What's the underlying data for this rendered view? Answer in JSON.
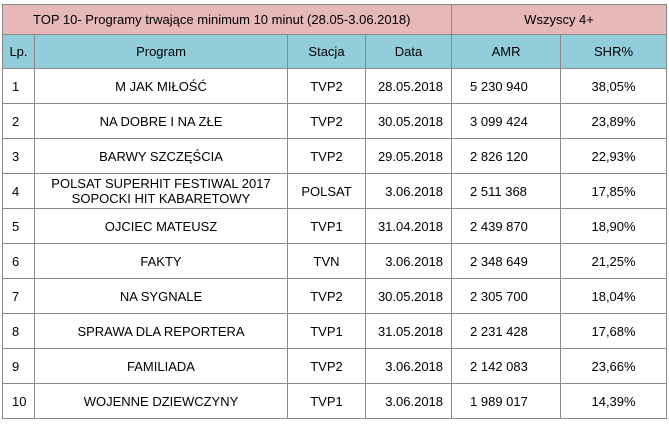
{
  "table": {
    "title": "TOP 10- Programy trwające minimum 10 minut (28.05-3.06.2018)",
    "group_label": "Wszyscy 4+",
    "headers": {
      "lp": "Lp.",
      "program": "Program",
      "station": "Stacja",
      "date": "Data",
      "amr": "AMR",
      "shr": "SHR%"
    },
    "rows": [
      {
        "lp": "1",
        "program": "M JAK MIŁOŚĆ",
        "station": "TVP2",
        "date": "28.05.2018",
        "amr": "5 230 940",
        "shr": "38,05%"
      },
      {
        "lp": "2",
        "program": "NA DOBRE I NA ZŁE",
        "station": "TVP2",
        "date": "30.05.2018",
        "amr": "3 099 424",
        "shr": "23,89%"
      },
      {
        "lp": "3",
        "program": "BARWY SZCZĘŚCIA",
        "station": "TVP2",
        "date": "29.05.2018",
        "amr": "2 826 120",
        "shr": "22,93%"
      },
      {
        "lp": "4",
        "program": "POLSAT SUPERHIT FESTIWAL 2017",
        "program2": "SOPOCKI HIT KABARETOWY",
        "station": "POLSAT",
        "date": "3.06.2018",
        "amr": "2 511 368",
        "shr": "17,85%"
      },
      {
        "lp": "5",
        "program": "OJCIEC MATEUSZ",
        "station": "TVP1",
        "date": "31.04.2018",
        "amr": "2 439 870",
        "shr": "18,90%"
      },
      {
        "lp": "6",
        "program": "FAKTY",
        "station": "TVN",
        "date": "3.06.2018",
        "amr": "2 348 649",
        "shr": "21,25%"
      },
      {
        "lp": "7",
        "program": "NA SYGNALE",
        "station": "TVP2",
        "date": "30.05.2018",
        "amr": "2 305 700",
        "shr": "18,04%"
      },
      {
        "lp": "8",
        "program": "SPRAWA DLA REPORTERA",
        "station": "TVP1",
        "date": "31.05.2018",
        "amr": "2 231 428",
        "shr": "17,68%"
      },
      {
        "lp": "9",
        "program": "FAMILIADA",
        "station": "TVP2",
        "date": "3.06.2018",
        "amr": "2 142 083",
        "shr": "23,66%"
      },
      {
        "lp": "10",
        "program": "WOJENNE DZIEWCZYNY",
        "station": "TVP1",
        "date": "3.06.2018",
        "amr": "1 989 017",
        "shr": "14,39%"
      }
    ]
  },
  "colors": {
    "title_background": "#e6b8b7",
    "header_background": "#92cddc",
    "border": "#8a8a8a"
  }
}
